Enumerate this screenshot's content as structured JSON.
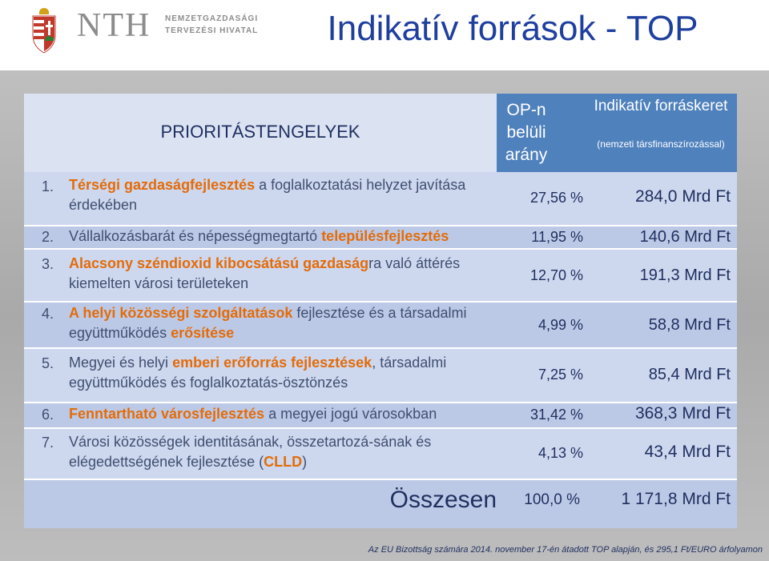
{
  "header": {
    "logo_mark": "NTH",
    "logo_sub_line1": "NEMZETGAZDASÁGI",
    "logo_sub_line2": "TERVEZÉSI HIVATAL",
    "title": "Indikatív források - TOP"
  },
  "table": {
    "col_priorities": "PRIORITÁSTENGELYEK",
    "col_share": "OP-n belüli arány",
    "col_source": "Indikatív forráskeret",
    "col_source_sub": "(nemzeti társfinanszírozással)",
    "rows": [
      {
        "num": "1.",
        "hl": "Térségi gazdaságfejlesztés",
        "rest": " a foglalkoztatási helyzet javítása érdekében",
        "pct": "27,56 %",
        "amt": "284,0 Mrd Ft"
      },
      {
        "num": "2.",
        "pre": "Vállalkozásbarát és népességmegtartó ",
        "hl": "településfejlesztés",
        "pct": "11,95 %",
        "amt": "140,6 Mrd Ft"
      },
      {
        "num": "3.",
        "hl": "Alacsony széndioxid kibocsátású gazdaság",
        "rest": "ra való áttérés kiemelten városi területeken",
        "pct": "12,70 %",
        "amt": "191,3 Mrd Ft"
      },
      {
        "num": "4.",
        "hl": "A helyi közösségi szolgáltatások",
        "rest": " fejlesztése és a társadalmi együttműködés ",
        "hl2": "erősítése",
        "pct": "4,99 %",
        "amt": "58,8 Mrd Ft"
      },
      {
        "num": "5.",
        "pre": "Megyei és helyi ",
        "hl": "emberi erőforrás fejlesztések",
        "rest": ", társadalmi együttműködés és foglalkoztatás-ösztönzés",
        "pct": "7,25 %",
        "amt": "85,4 Mrd Ft"
      },
      {
        "num": "6.",
        "hl": "Fenntartható városfejlesztés",
        "rest": " a megyei jogú városokban",
        "pct": "31,42 %",
        "amt": "368,3 Mrd Ft"
      },
      {
        "num": "7.",
        "rest": "Városi közösségek identitásának, összetartozá-sának és elégedettségének fejlesztése (",
        "hl": "CLLD",
        "rest2": ")",
        "pct": "4,13 %",
        "amt": "43,4 Mrd Ft"
      }
    ],
    "total_label": "Összesen",
    "total_pct": "100,0 %",
    "total_amt": "1 171,8 Mrd Ft"
  },
  "footnote": "Az EU Bizottság számára 2014. november 17-én átadott TOP alapján, és 295,1 Ft/EURO árfolyamon",
  "colors": {
    "title": "#1f3f9f",
    "header_fill": "#4f81bd",
    "highlight": "#e36c0a"
  }
}
